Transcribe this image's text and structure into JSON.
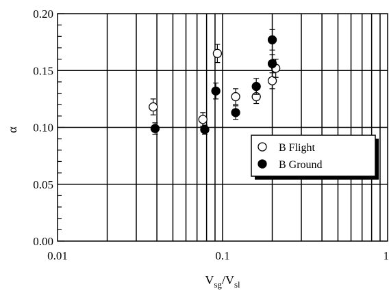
{
  "chart_data": {
    "type": "scatter",
    "title": "",
    "xlabel": {
      "base1": "V",
      "sub1": "sg",
      "sep": "/V",
      "sub2": "sl"
    },
    "ylabel": "α",
    "x_scale": "log",
    "xlim": [
      0.01,
      1
    ],
    "ylim": [
      0.0,
      0.2
    ],
    "x_ticks": [
      {
        "value": 0.01,
        "label": "0.01"
      },
      {
        "value": 0.1,
        "label": "0.1"
      },
      {
        "value": 1,
        "label": "1"
      }
    ],
    "y_ticks": [
      {
        "value": 0.0,
        "label": "0.00"
      },
      {
        "value": 0.05,
        "label": "0.05"
      },
      {
        "value": 0.1,
        "label": "0.10"
      },
      {
        "value": 0.15,
        "label": "0.15"
      },
      {
        "value": 0.2,
        "label": "0.20"
      }
    ],
    "grid": true,
    "legend_position": "center-right",
    "series": [
      {
        "name": "B Flight",
        "marker": "open-circle",
        "points": [
          {
            "x": 0.038,
            "y": 0.118,
            "err": 0.007
          },
          {
            "x": 0.076,
            "y": 0.107,
            "err": 0.006
          },
          {
            "x": 0.093,
            "y": 0.165,
            "err": 0.008
          },
          {
            "x": 0.12,
            "y": 0.127,
            "err": 0.007
          },
          {
            "x": 0.16,
            "y": 0.127,
            "err": 0.006
          },
          {
            "x": 0.2,
            "y": 0.141,
            "err": 0.007
          },
          {
            "x": 0.21,
            "y": 0.152,
            "err": 0.008
          }
        ]
      },
      {
        "name": "B Ground",
        "marker": "filled-circle",
        "points": [
          {
            "x": 0.039,
            "y": 0.099,
            "err": 0.005
          },
          {
            "x": 0.078,
            "y": 0.098,
            "err": 0.004
          },
          {
            "x": 0.091,
            "y": 0.132,
            "err": 0.007
          },
          {
            "x": 0.12,
            "y": 0.113,
            "err": 0.006
          },
          {
            "x": 0.16,
            "y": 0.136,
            "err": 0.007
          },
          {
            "x": 0.2,
            "y": 0.156,
            "err": 0.008
          },
          {
            "x": 0.2,
            "y": 0.177,
            "err": 0.009
          }
        ]
      }
    ]
  }
}
